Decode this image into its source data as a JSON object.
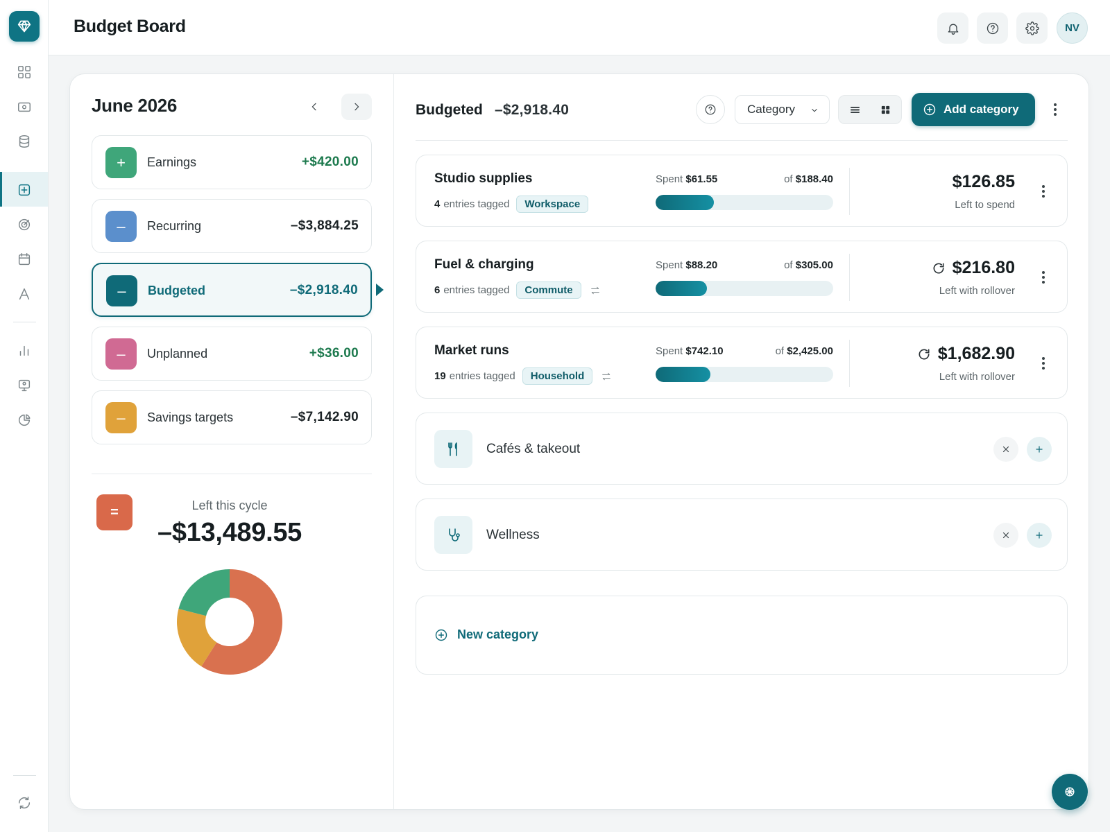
{
  "app": {
    "title": "Budget Board"
  },
  "rail": {
    "items": [
      "dashboard-icon",
      "wallet-icon",
      "database-icon",
      "budget-icon",
      "target-icon",
      "calendar-icon",
      "font-icon",
      "bar-chart-icon",
      "monitor-icon",
      "pie-chart-icon",
      "sync-icon"
    ],
    "active": "budget-icon"
  },
  "topbar": {
    "avatar_initials": "NV",
    "icons": [
      "bell-icon",
      "help-icon",
      "gear-icon"
    ]
  },
  "period": {
    "label": "June 2026"
  },
  "summary": [
    {
      "key": "earnings",
      "symbol": "+",
      "label": "Earnings",
      "amount": "+$420.00",
      "color": "#3fa67a",
      "tone": "pos"
    },
    {
      "key": "recurring",
      "symbol": "–",
      "label": "Recurring",
      "amount": "–$3,884.25",
      "color": "#5b8fcc",
      "tone": "neg"
    },
    {
      "key": "budgeted",
      "symbol": "–",
      "label": "Budgeted",
      "amount": "–$2,918.40",
      "color": "#0f6a78",
      "tone": "neg",
      "selected": true
    },
    {
      "key": "unplanned",
      "symbol": "–",
      "label": "Unplanned",
      "amount": "+$36.00",
      "color": "#d06a93",
      "tone": "pos"
    },
    {
      "key": "savings",
      "symbol": "–",
      "label": "Savings targets",
      "amount": "–$7,142.90",
      "color": "#e0a23a",
      "tone": "neg"
    }
  ],
  "cycle": {
    "symbol": "=",
    "label": "Left this cycle",
    "amount": "–$13,489.55"
  },
  "donut": [
    {
      "color": "#d9714f",
      "fraction": 0.59
    },
    {
      "color": "#e0a23a",
      "fraction": 0.2
    },
    {
      "color": "#3fa67a",
      "fraction": 0.21
    }
  ],
  "header": {
    "label": "Budgeted",
    "amount": "–$2,918.40",
    "sort_select": "Category",
    "add_button": "Add category",
    "view": "list"
  },
  "categories": [
    {
      "name": "Studio supplies",
      "entries_count": "4",
      "entries_text": "entries tagged",
      "tag": "Workspace",
      "rollover_link": false,
      "spent_label": "Spent",
      "spent": "$61.55",
      "of_label": "of",
      "budget": "$188.40",
      "progress": 0.33,
      "remaining": "$126.85",
      "remaining_label": "Left to spend",
      "rollover": false
    },
    {
      "name": "Fuel & charging",
      "entries_count": "6",
      "entries_text": "entries tagged",
      "tag": "Commute",
      "rollover_link": true,
      "spent_label": "Spent",
      "spent": "$88.20",
      "of_label": "of",
      "budget": "$305.00",
      "progress": 0.29,
      "remaining": "$216.80",
      "remaining_label": "Left with rollover",
      "rollover": true
    },
    {
      "name": "Market runs",
      "entries_count": "19",
      "entries_text": "entries tagged",
      "tag": "Household",
      "rollover_link": true,
      "spent_label": "Spent",
      "spent": "$742.10",
      "of_label": "of",
      "budget": "$2,425.00",
      "progress": 0.31,
      "remaining": "$1,682.90",
      "remaining_label": "Left with rollover",
      "rollover": true
    }
  ],
  "empty_categories": [
    {
      "name": "Cafés & takeout",
      "icon": "utensils-icon"
    },
    {
      "name": "Wellness",
      "icon": "stethoscope-icon"
    }
  ],
  "new_category": {
    "label": "New category"
  },
  "fab": {
    "icon": "sparkle-icon"
  }
}
